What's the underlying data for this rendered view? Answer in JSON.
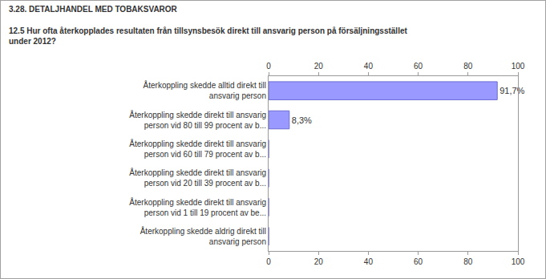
{
  "chart_data": {
    "type": "bar",
    "subtitle": "3.28. DETALJHANDEL MED TOBAKSVAROR",
    "title": "12.5 Hur ofta återkopplades resultaten från tillsynsbesök direkt till ansvarig person på försäljningsstället under 2012?",
    "orientation": "horizontal",
    "categories": [
      "Återkoppling skedde alltid direkt till ansvarig person",
      "Återkoppling skedde direkt till ansvarig person vid 80 till 99 procent av b...",
      "Återkoppling skedde direkt till ansvarig person vid 60 till 79 procent av b...",
      "Återkoppling skedde direkt till ansvarig person vid 20 till 39 procent av b...",
      "Återkoppling skedde direkt till ansvarig person vid 1 till 19 procent av be...",
      "Återkoppling skedde aldrig direkt till ansvarig person"
    ],
    "values": [
      91.7,
      8.3,
      0,
      0,
      0,
      0
    ],
    "value_labels": [
      "91,7%",
      "8,3%",
      null,
      null,
      null,
      null
    ],
    "data_labels": true,
    "color": "#9999ff",
    "xlim": [
      0,
      100
    ],
    "xticks": [
      0,
      20,
      40,
      60,
      80,
      100
    ],
    "grid": false
  }
}
